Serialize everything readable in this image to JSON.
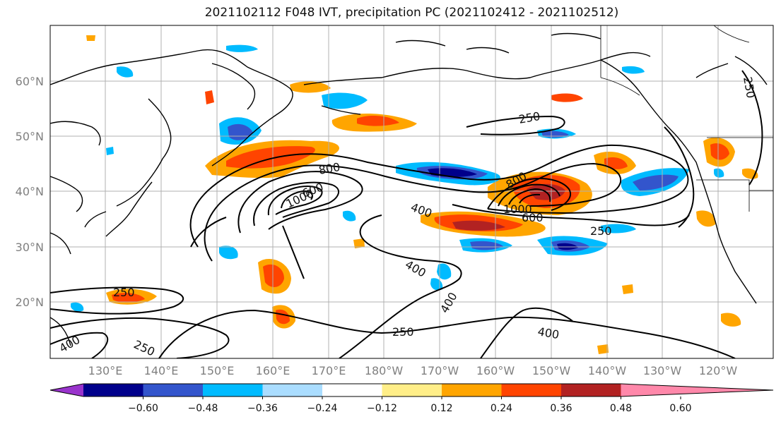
{
  "title": "2021102112 F048 IVT, precipitation PC (2021102412 - 2021102512)",
  "axes": {
    "lat_labels": [
      "20°N",
      "30°N",
      "40°N",
      "50°N",
      "60°N"
    ],
    "lon_labels": [
      "130°E",
      "140°E",
      "150°E",
      "160°E",
      "170°E",
      "180°W",
      "170°W",
      "160°W",
      "150°W",
      "140°W",
      "130°W",
      "120°W"
    ]
  },
  "colorbar": {
    "colors": [
      "#9933cc",
      "#00008b",
      "#3355cc",
      "#00bbff",
      "#aaddff",
      "#ffffff",
      "#ffee88",
      "#ffa500",
      "#ff4400",
      "#b22222",
      "#ff88aa"
    ],
    "ticks": [
      "−0.60",
      "−0.48",
      "−0.36",
      "−0.24",
      "−0.12",
      "0.12",
      "0.24",
      "0.36",
      "0.48",
      "0.60"
    ]
  },
  "contour_labels": [
    {
      "text": "250",
      "id": "c250-nw"
    },
    {
      "text": "250",
      "id": "c250-e"
    },
    {
      "text": "250",
      "id": "c250-sw"
    },
    {
      "text": "250",
      "id": "c250-s"
    },
    {
      "text": "250",
      "id": "c250-ne"
    },
    {
      "text": "250",
      "id": "c250-ssw"
    },
    {
      "text": "400",
      "id": "c400-a"
    },
    {
      "text": "400",
      "id": "c400-b"
    },
    {
      "text": "400",
      "id": "c400-c"
    },
    {
      "text": "400",
      "id": "c400-d"
    },
    {
      "text": "400",
      "id": "c400-e"
    },
    {
      "text": "600",
      "id": "c600-a"
    },
    {
      "text": "600",
      "id": "c600-b"
    },
    {
      "text": "800",
      "id": "c800-a"
    },
    {
      "text": "800",
      "id": "c800-b"
    },
    {
      "text": "1000",
      "id": "c1000-a"
    },
    {
      "text": "1000",
      "id": "c1000-b"
    }
  ]
}
